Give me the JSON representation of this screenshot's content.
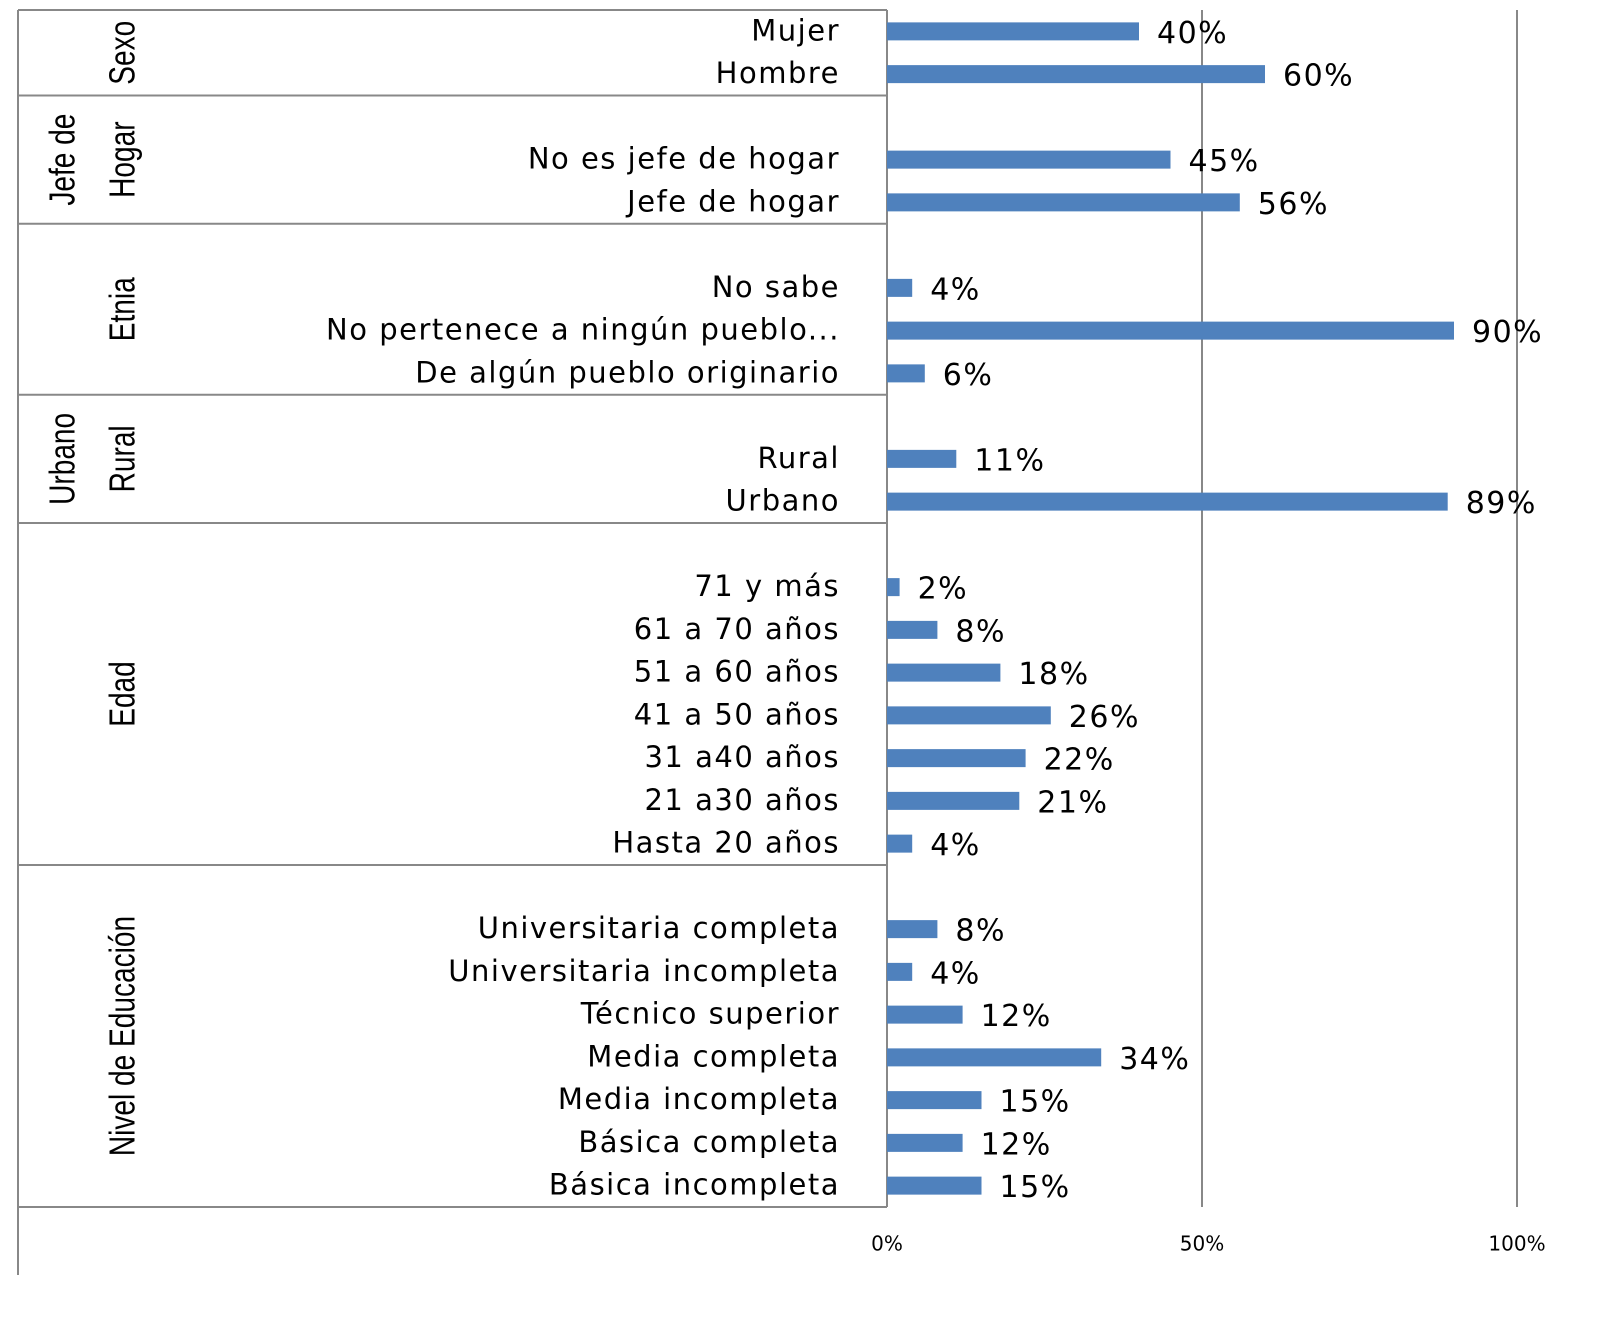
{
  "chart_data": {
    "type": "bar",
    "color": "#4f81bd",
    "grid": true,
    "xlim": [
      0,
      100
    ],
    "xticks": [
      {
        "value": 0,
        "label": "0%"
      },
      {
        "value": 50,
        "label": "50%"
      },
      {
        "value": 100,
        "label": "100%"
      }
    ],
    "groups": [
      {
        "name": [
          "Sexo"
        ],
        "categories": [
          "Mujer",
          "Hombre"
        ],
        "values": [
          40,
          60
        ],
        "value_labels": [
          "40%",
          "60%"
        ]
      },
      {
        "name": [
          "Jefe de",
          "Hogar"
        ],
        "categories": [
          "No es jefe de hogar",
          "Jefe de hogar"
        ],
        "values": [
          45,
          56
        ],
        "value_labels": [
          "45%",
          "56%"
        ]
      },
      {
        "name": [
          "Etnia"
        ],
        "categories": [
          "No sabe",
          "No pertenece a ningún pueblo...",
          "De algún pueblo originario"
        ],
        "values": [
          4,
          90,
          6
        ],
        "value_labels": [
          "4%",
          "90%",
          "6%"
        ]
      },
      {
        "name": [
          "Urbano",
          "Rural"
        ],
        "categories": [
          "Rural",
          "Urbano"
        ],
        "values": [
          11,
          89
        ],
        "value_labels": [
          "11%",
          "89%"
        ]
      },
      {
        "name": [
          "Edad"
        ],
        "categories": [
          "71 y más",
          "61 a 70 años",
          "51 a 60 años",
          "41 a 50 años",
          "31 a40 años",
          "21 a30 años",
          "Hasta 20 años"
        ],
        "values": [
          2,
          8,
          18,
          26,
          22,
          21,
          4
        ],
        "value_labels": [
          "2%",
          "8%",
          "18%",
          "26%",
          "22%",
          "21%",
          "4%"
        ]
      },
      {
        "name": [
          "Nivel de Educación"
        ],
        "categories": [
          "Universitaria completa",
          "Universitaria incompleta",
          "Técnico superior",
          "Media completa",
          "Media incompleta",
          "Básica completa",
          "Básica incompleta"
        ],
        "values": [
          8,
          4,
          12,
          34,
          15,
          12,
          15
        ],
        "value_labels": [
          "8%",
          "4%",
          "12%",
          "34%",
          "15%",
          "12%",
          "15%"
        ]
      }
    ]
  }
}
